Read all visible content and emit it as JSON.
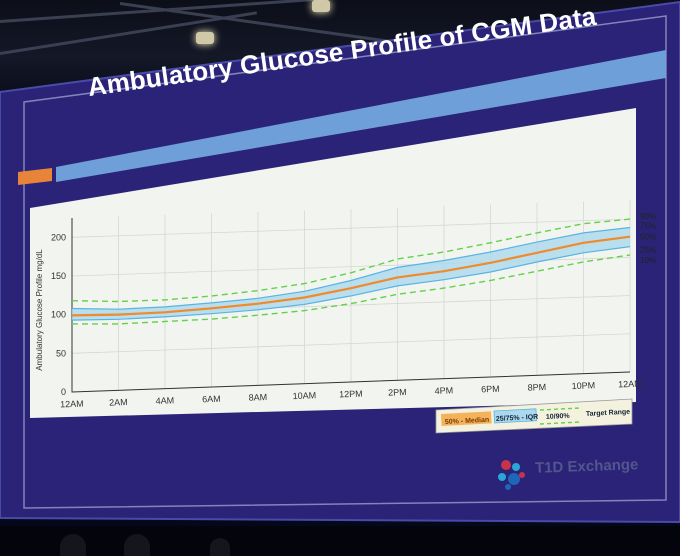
{
  "slide": {
    "title": "Ambulatory Glucose Profile of CGM Data",
    "logo_text": "T1D Exchange"
  },
  "colors": {
    "slide_bg": "#26206e",
    "accent_orange": "#e8843a",
    "accent_blue": "#6f9fd8",
    "plot_bg": "#f2f4f0",
    "median": "#f08a2a",
    "iqr_fill": "#aad8ee",
    "iqr_line": "#58b4e2",
    "outer_dashed": "#63d14a"
  },
  "chart_data": {
    "type": "area",
    "title": "",
    "ylabel": "Ambulatory Glucose Profile  mg/dL",
    "xlabel": "",
    "ylim": [
      0,
      225
    ],
    "yticks": [
      0,
      50,
      100,
      150,
      200
    ],
    "x_tick_labels": [
      "12AM",
      "2AM",
      "4AM",
      "6AM",
      "8AM",
      "10AM",
      "12PM",
      "2PM",
      "4PM",
      "6PM",
      "8PM",
      "10PM",
      "12AM"
    ],
    "x_hours": [
      0,
      2,
      4,
      6,
      8,
      10,
      12,
      14,
      16,
      18,
      20,
      22,
      24
    ],
    "grid": true,
    "series": [
      {
        "name": "90%",
        "values": [
          118,
          115,
          115,
          118,
          123,
          130,
          142,
          158,
          165,
          175,
          186,
          196,
          200
        ]
      },
      {
        "name": "75%",
        "values": [
          108,
          105,
          106,
          109,
          113,
          120,
          132,
          147,
          154,
          163,
          174,
          184,
          189
        ]
      },
      {
        "name": "50%",
        "values": [
          99,
          98,
          99,
          102,
          106,
          112,
          122,
          134,
          140,
          149,
          160,
          171,
          177
        ]
      },
      {
        "name": "25%",
        "values": [
          93,
          92,
          93,
          95,
          98,
          103,
          112,
          123,
          129,
          137,
          148,
          158,
          164
        ]
      },
      {
        "name": "10%",
        "values": [
          88,
          86,
          87,
          88,
          91,
          95,
          102,
          112,
          118,
          126,
          136,
          146,
          153
        ]
      }
    ],
    "legend": {
      "position": "bottom-right",
      "entries": [
        {
          "label": "50% - Median",
          "kind": "median"
        },
        {
          "label": "25/75% - IQR",
          "kind": "iqr"
        },
        {
          "label": "10/90%",
          "kind": "outer"
        },
        {
          "label": "Target Range",
          "kind": "target"
        }
      ]
    }
  }
}
